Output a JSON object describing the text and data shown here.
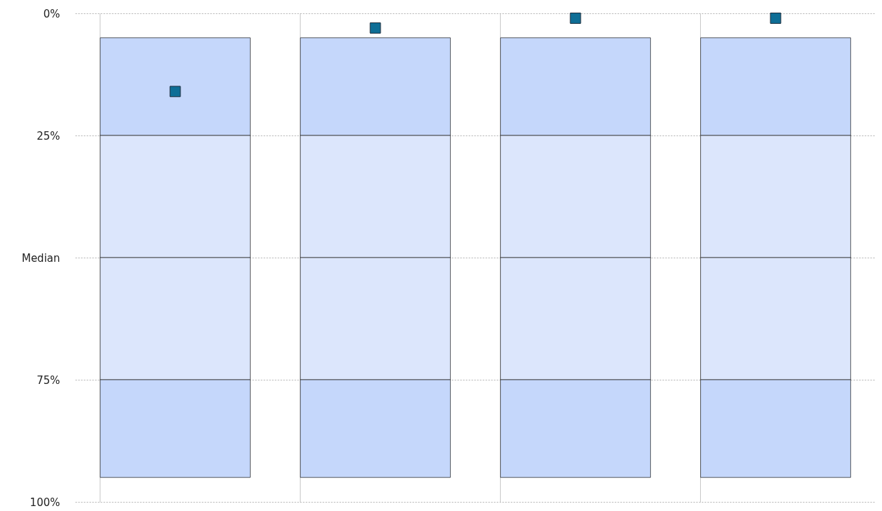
{
  "chart_data": {
    "type": "bar",
    "categories": [
      null,
      null,
      null,
      null
    ],
    "series": [
      {
        "color": "#c5d7fb",
        "base": [
          5,
          5,
          5,
          5
        ],
        "values": [
          20,
          20,
          20,
          20
        ]
      },
      {
        "color": "#dce6fc",
        "base": [
          25,
          25,
          25,
          25
        ],
        "values": [
          25,
          25,
          25,
          25
        ]
      },
      {
        "color": "#dce6fc",
        "base": [
          50,
          50,
          50,
          50
        ],
        "values": [
          25,
          25,
          25,
          25
        ]
      },
      {
        "color": "#c5d7fb",
        "base": [
          75,
          75,
          75,
          75
        ],
        "values": [
          20,
          20,
          20,
          20
        ]
      },
      {
        "type": "scatter",
        "color": "#0e6e96",
        "values": [
          16,
          3,
          1,
          1
        ]
      }
    ],
    "ylim": [
      100,
      0
    ],
    "yticks": [
      {
        "value": 0,
        "label": "0%"
      },
      {
        "value": 25,
        "label": "25%"
      },
      {
        "value": 50,
        "label": "Median"
      },
      {
        "value": 75,
        "label": "75%"
      },
      {
        "value": 100,
        "label": "100%"
      }
    ],
    "grid": true,
    "tick_labels": "y",
    "marker": "square"
  }
}
